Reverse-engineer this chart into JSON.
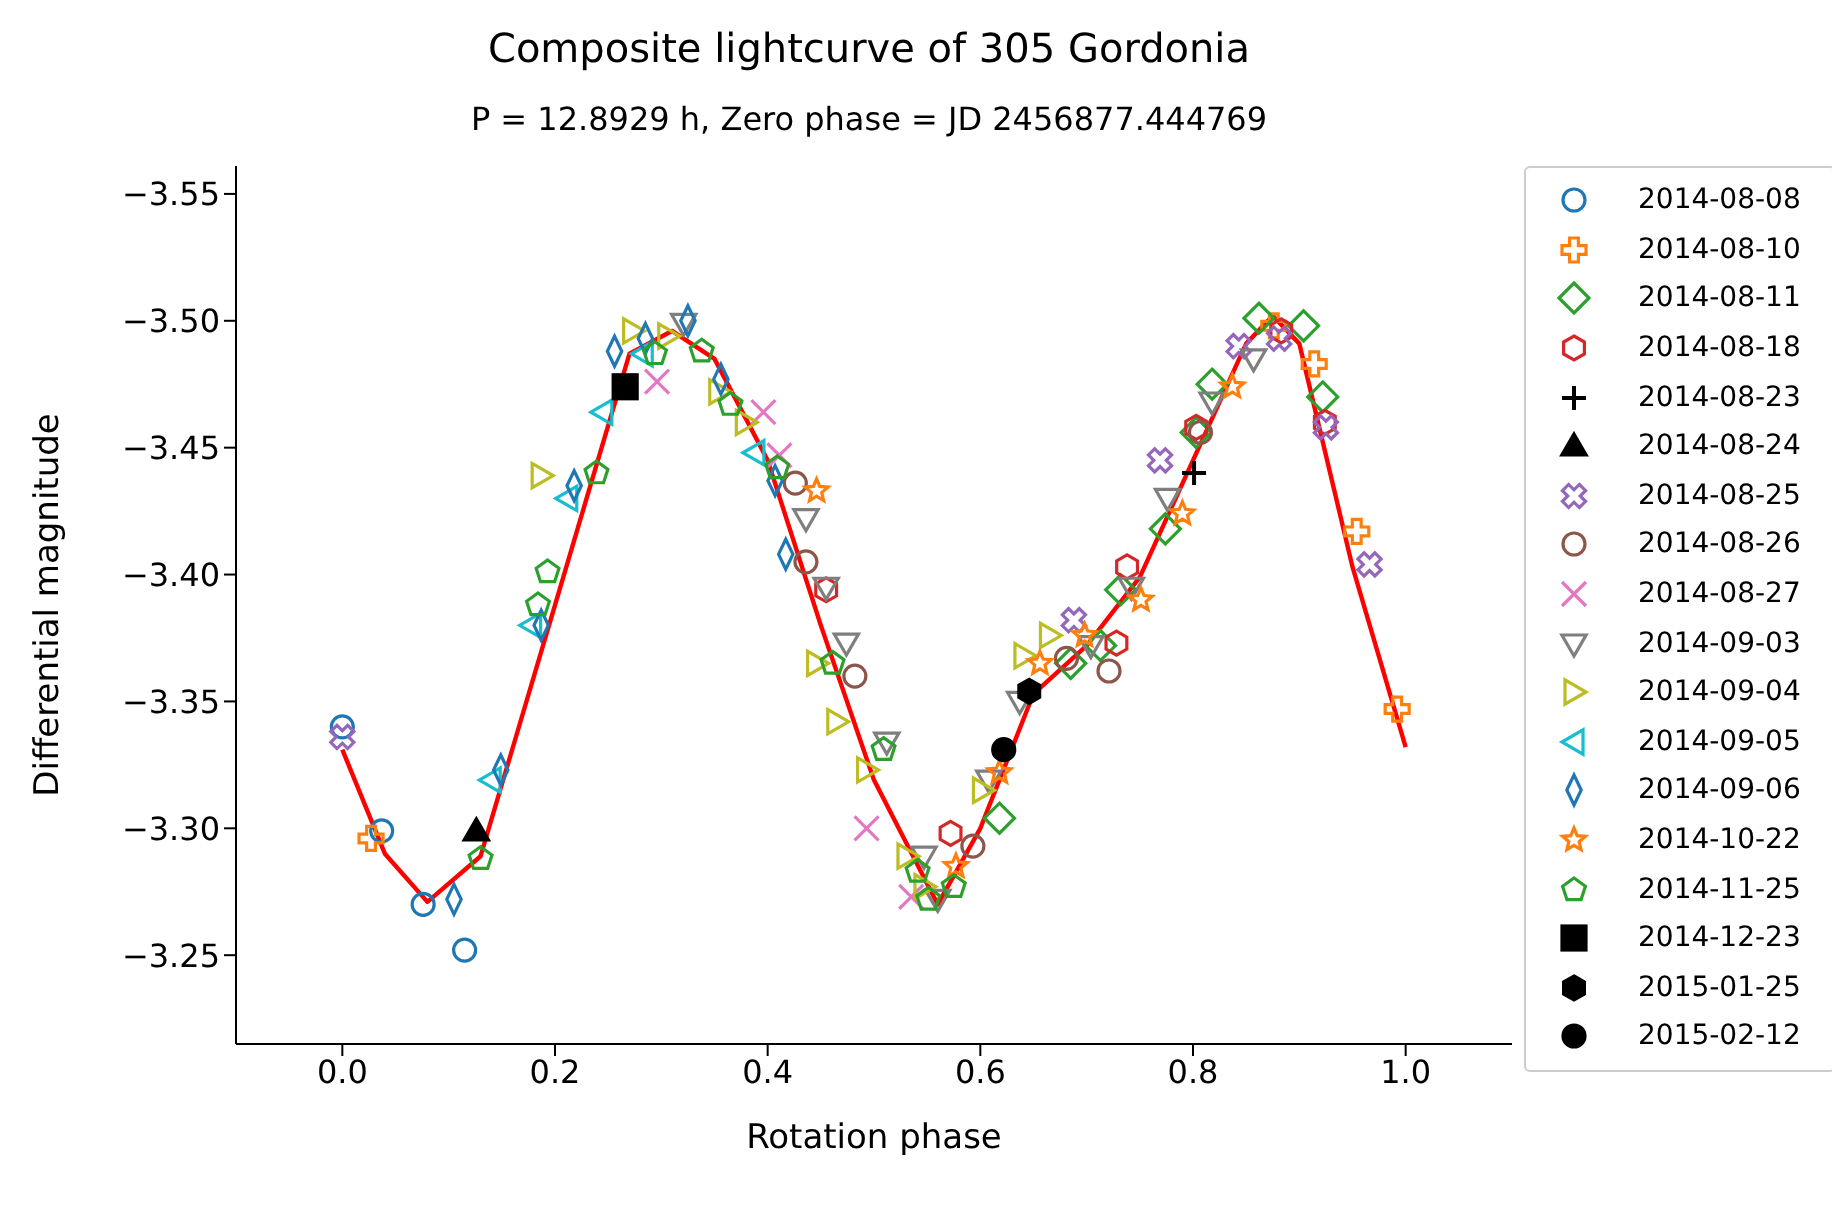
{
  "chart_data": {
    "type": "scatter",
    "title": "Composite lightcurve of 305 Gordonia",
    "subtitle": "P = 12.8929 h, Zero phase = JD 2456877.444769",
    "xlabel": "Rotation phase",
    "ylabel": "Differential magnitude",
    "xlim": [
      -0.1,
      1.1
    ],
    "xticks": [
      {
        "value": 0,
        "label": "0.0"
      },
      {
        "value": 0.2,
        "label": "0.2"
      },
      {
        "value": 0.4,
        "label": "0.4"
      },
      {
        "value": 0.6,
        "label": "0.6"
      },
      {
        "value": 0.8,
        "label": "0.8"
      },
      {
        "value": 1,
        "label": "1.0"
      }
    ],
    "ylim": [
      -3.215,
      -3.561
    ],
    "yticks": [
      {
        "value": -3.25,
        "label": "−3.25"
      },
      {
        "value": -3.3,
        "label": "−3.30"
      },
      {
        "value": -3.35,
        "label": "−3.35"
      },
      {
        "value": -3.4,
        "label": "−3.40"
      },
      {
        "value": -3.45,
        "label": "−3.45"
      },
      {
        "value": -3.5,
        "label": "−3.50"
      },
      {
        "value": -3.55,
        "label": "−3.55"
      }
    ],
    "grid": false,
    "legend": "right",
    "series": [
      {
        "type": "line",
        "color": "#ff0000",
        "marker": "none",
        "line_style": "solid",
        "x": [
          0,
          0.04,
          0.08,
          0.13,
          0.2,
          0.27,
          0.31,
          0.35,
          0.4,
          0.45,
          0.5,
          0.56,
          0.6,
          0.65,
          0.7,
          0.75,
          0.8,
          0.85,
          0.875,
          0.9,
          0.95,
          1.0
        ],
        "values": [
          -3.331,
          -3.29,
          -3.271,
          -3.289,
          -3.388,
          -3.487,
          -3.496,
          -3.485,
          -3.445,
          -3.38,
          -3.319,
          -3.27,
          -3.3,
          -3.353,
          -3.372,
          -3.399,
          -3.445,
          -3.491,
          -3.502,
          -3.491,
          -3.403,
          -3.332
        ]
      },
      {
        "name": "2014-08-08",
        "color": "#1f77b4",
        "marker": "circle",
        "x": [
          0,
          0.037,
          0.076,
          0.115
        ],
        "values": [
          -3.34,
          -3.299,
          -3.27,
          -3.252
        ]
      },
      {
        "name": "2014-08-10",
        "color": "#ff7f0e",
        "marker": "cross",
        "x": [
          0.027,
          0.876,
          0.914,
          0.954,
          0.992
        ],
        "values": [
          -3.296,
          -3.498,
          -3.483,
          -3.417,
          -3.347
        ]
      },
      {
        "name": "2014-08-11",
        "color": "#2ca02c",
        "marker": "diamond",
        "x": [
          0.862,
          0.904,
          0.922,
          0.818,
          0.803,
          0.774,
          0.732,
          0.713,
          0.618,
          0.685
        ],
        "values": [
          -3.501,
          -3.498,
          -3.47,
          -3.475,
          -3.456,
          -3.418,
          -3.394,
          -3.372,
          -3.304,
          -3.365
        ]
      },
      {
        "name": "2014-08-18",
        "color": "#d62728",
        "x": [
          0.883,
          0.924,
          0.803,
          0.738,
          0.728,
          0.572,
          0.455
        ],
        "values": [
          -3.496,
          -3.46,
          -3.458,
          -3.403,
          -3.373,
          -3.298,
          -3.394
        ]
      },
      {
        "name": "2014-08-23",
        "color": "#000000",
        "marker": "cross",
        "x": [
          0.801
        ],
        "values": [
          -3.44
        ]
      },
      {
        "name": "2014-08-24",
        "color": "#000000",
        "marker": "triangle",
        "x": [
          0.126
        ],
        "values": [
          -3.299
        ]
      },
      {
        "name": "2014-08-25",
        "color": "#9467bd",
        "marker": "cross",
        "x": [
          0,
          0.843,
          0.881,
          0.925,
          0.966,
          0.769,
          0.688
        ],
        "values": [
          -3.336,
          -3.49,
          -3.493,
          -3.458,
          -3.404,
          -3.445,
          -3.382
        ]
      },
      {
        "name": "2014-08-26",
        "color": "#8c564b",
        "marker": "circle",
        "x": [
          0.482,
          0.426,
          0.593,
          0.721,
          0.681,
          0.807,
          0.436
        ],
        "values": [
          -3.36,
          -3.436,
          -3.293,
          -3.362,
          -3.367,
          -3.456,
          -3.405
        ]
      },
      {
        "name": "2014-08-27",
        "color": "#e377c2",
        "x": [
          0.296,
          0.396,
          0.411,
          0.493,
          0.535
        ],
        "values": [
          -3.476,
          -3.464,
          -3.447,
          -3.3,
          -3.273
        ]
      },
      {
        "name": "2014-09-03",
        "color": "#7f7f7f",
        "x": [
          0.321,
          0.436,
          0.455,
          0.474,
          0.512,
          0.547,
          0.56,
          0.608,
          0.637,
          0.704,
          0.742,
          0.776,
          0.818,
          0.857
        ],
        "values": [
          -3.499,
          -3.422,
          -3.395,
          -3.373,
          -3.334,
          -3.289,
          -3.272,
          -3.319,
          -3.35,
          -3.372,
          -3.395,
          -3.43,
          -3.468,
          -3.485
        ]
      },
      {
        "name": "2014-09-04",
        "color": "#bcbd22",
        "x": [
          0.187,
          0.273,
          0.306,
          0.354,
          0.379,
          0.446,
          0.465,
          0.493,
          0.531,
          0.547,
          0.602,
          0.641,
          0.665
        ],
        "values": [
          -3.439,
          -3.496,
          -3.494,
          -3.472,
          -3.46,
          -3.365,
          -3.342,
          -3.323,
          -3.289,
          -3.277,
          -3.315,
          -3.368,
          -3.376
        ]
      },
      {
        "name": "2014-09-05",
        "color": "#17becf",
        "x": [
          0.14,
          0.178,
          0.212,
          0.245,
          0.283,
          0.388
        ],
        "values": [
          -3.319,
          -3.38,
          -3.43,
          -3.464,
          -3.487,
          -3.448
        ]
      },
      {
        "name": "2014-09-06",
        "color": "#1f77b4",
        "marker": "diamond",
        "x": [
          0.105,
          0.149,
          0.187,
          0.218,
          0.256,
          0.285,
          0.325,
          0.356,
          0.417,
          0.407
        ],
        "values": [
          -3.272,
          -3.323,
          -3.38,
          -3.435,
          -3.488,
          -3.493,
          -3.5,
          -3.477,
          -3.408,
          -3.437
        ]
      },
      {
        "name": "2014-10-22",
        "color": "#ff7f0e",
        "marker": "star",
        "x": [
          0.446,
          0.618,
          0.656,
          0.698,
          0.751,
          0.79,
          0.837,
          0.577
        ],
        "values": [
          -3.433,
          -3.322,
          -3.365,
          -3.376,
          -3.39,
          -3.424,
          -3.474,
          -3.285
        ]
      },
      {
        "name": "2014-11-25",
        "color": "#2ca02c",
        "x": [
          0.13,
          0.193,
          0.184,
          0.239,
          0.294,
          0.338,
          0.365,
          0.409,
          0.461,
          0.509,
          0.541,
          0.551,
          0.575
        ],
        "values": [
          -3.288,
          -3.401,
          -3.388,
          -3.44,
          -3.487,
          -3.488,
          -3.467,
          -3.442,
          -3.365,
          -3.331,
          -3.283,
          -3.272,
          -3.277
        ]
      },
      {
        "name": "2014-12-23",
        "color": "#000000",
        "marker": "square",
        "x": [
          0.266
        ],
        "values": [
          -3.474
        ]
      },
      {
        "name": "2015-01-25",
        "color": "#000000",
        "x": [
          0.646
        ],
        "values": [
          -3.354
        ]
      },
      {
        "name": "2015-02-12",
        "color": "#000000",
        "marker": "circle",
        "x": [
          0.622
        ],
        "values": [
          -3.331
        ]
      }
    ]
  }
}
